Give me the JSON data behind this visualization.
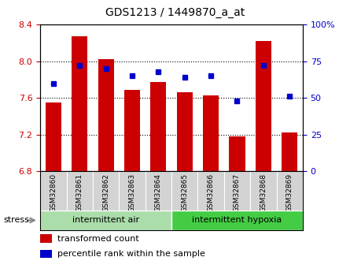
{
  "title": "GDS1213 / 1449870_a_at",
  "samples": [
    "GSM32860",
    "GSM32861",
    "GSM32862",
    "GSM32863",
    "GSM32864",
    "GSM32865",
    "GSM32866",
    "GSM32867",
    "GSM32868",
    "GSM32869"
  ],
  "transformed_count": [
    7.55,
    8.27,
    8.02,
    7.69,
    7.77,
    7.66,
    7.63,
    7.18,
    8.22,
    7.22
  ],
  "percentile_rank": [
    60,
    72,
    70,
    65,
    68,
    64,
    65,
    48,
    72,
    51
  ],
  "ylim_left": [
    6.8,
    8.4
  ],
  "ylim_right": [
    0,
    100
  ],
  "yticks_left": [
    6.8,
    7.2,
    7.6,
    8.0,
    8.4
  ],
  "yticks_right": [
    0,
    25,
    50,
    75,
    100
  ],
  "bar_color": "#cc0000",
  "marker_color": "#0000cc",
  "bar_bottom": 6.8,
  "groups": [
    {
      "label": "intermittent air",
      "start": 0,
      "end": 5,
      "color": "#aaddaa"
    },
    {
      "label": "intermittent hypoxia",
      "start": 5,
      "end": 10,
      "color": "#44cc44"
    }
  ],
  "stress_label": "stress",
  "legend_items": [
    {
      "label": "transformed count",
      "color": "#cc0000"
    },
    {
      "label": "percentile rank within the sample",
      "color": "#0000cc"
    }
  ],
  "bar_width": 0.6,
  "plot_bg": "#ffffff",
  "xtick_bg": "#d3d3d3"
}
